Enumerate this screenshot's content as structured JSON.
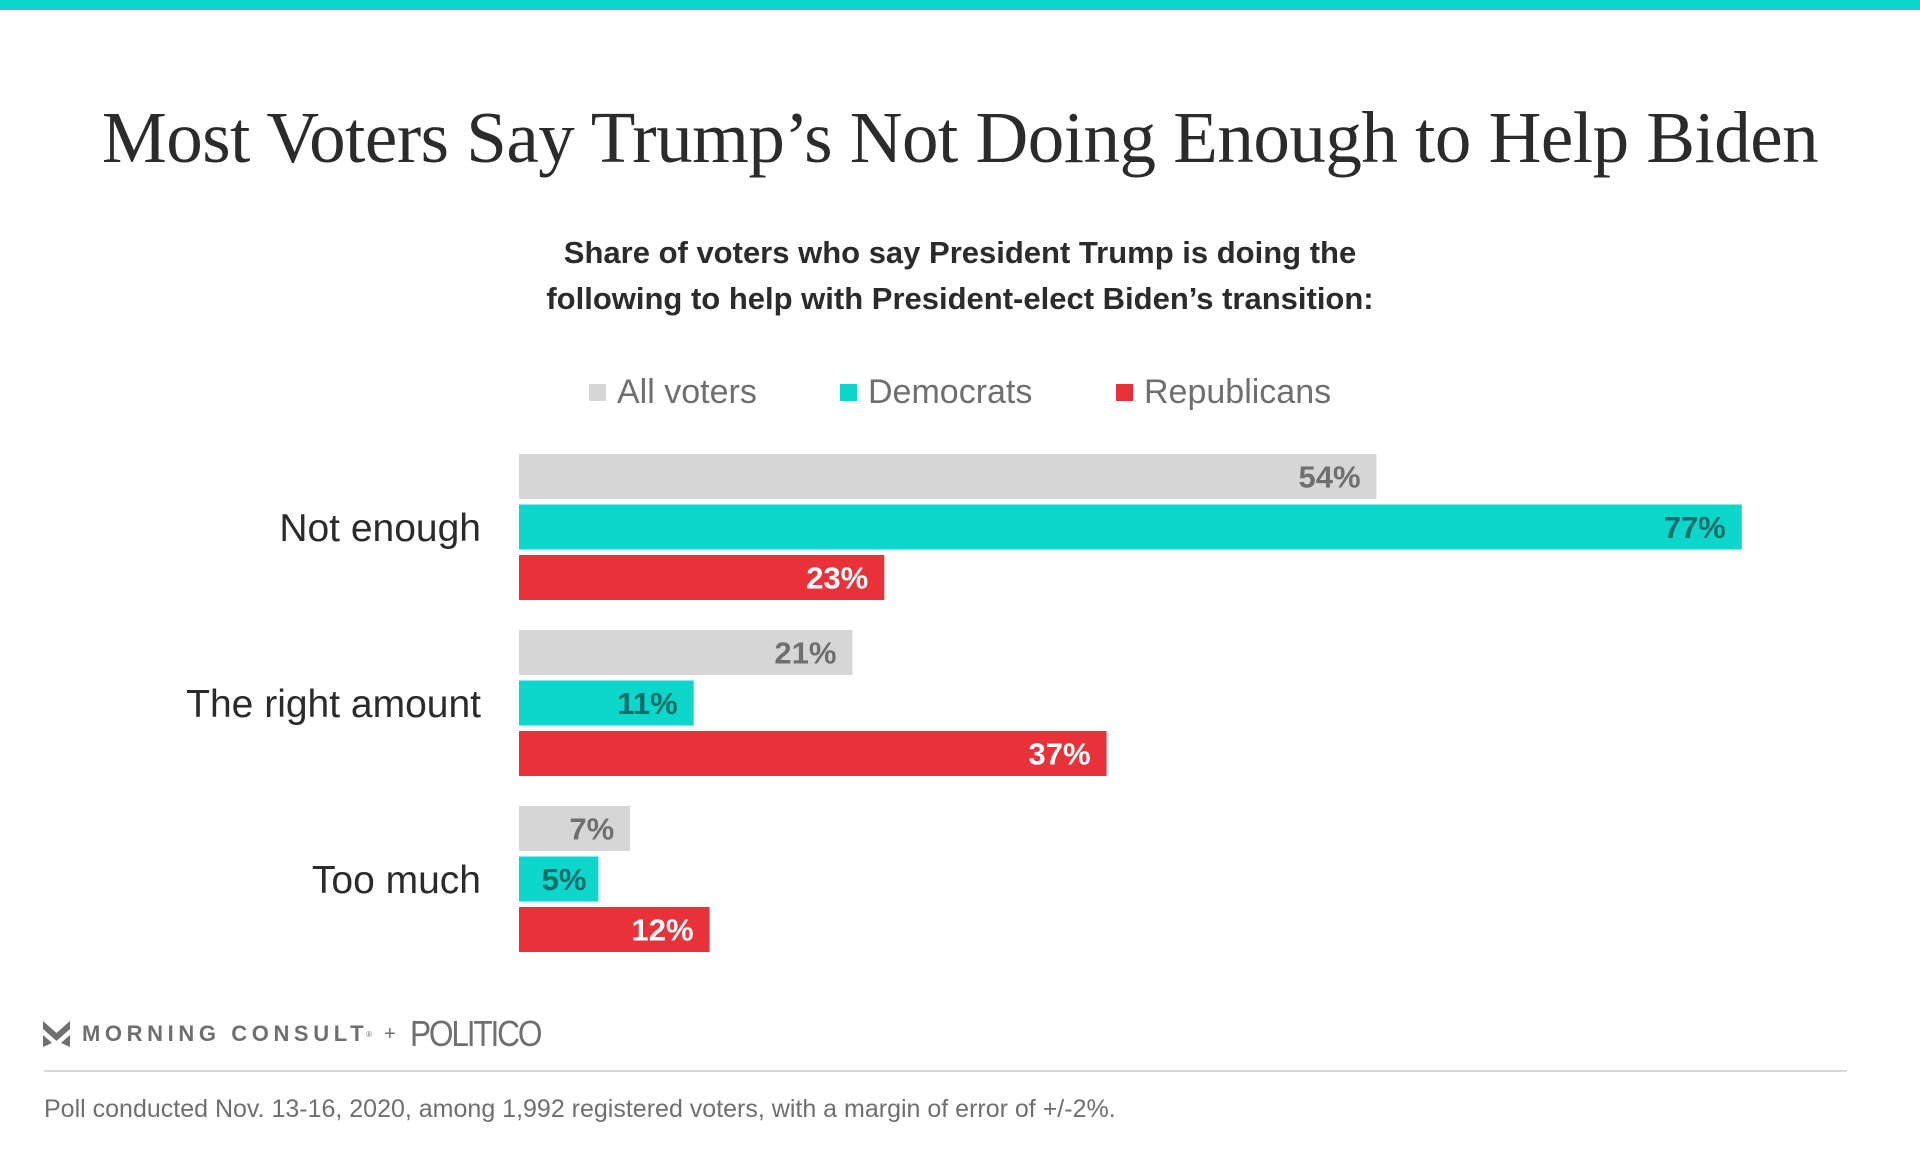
{
  "header": {
    "accent_color": "#0dd6cb",
    "title": "Most Voters Say Trump’s Not Doing Enough to Help Biden",
    "subtitle_line1": "Share of voters who say President Trump is doing the",
    "subtitle_line2": "following to help with President-elect Biden’s transition:"
  },
  "chart_data": {
    "type": "bar",
    "orientation": "horizontal",
    "title": "Most Voters Say Trump’s Not Doing Enough to Help Biden",
    "subtitle": "Share of voters who say President Trump is doing the following to help with President-elect Biden’s transition:",
    "xlabel": "",
    "ylabel": "",
    "unit": "%",
    "xlim": [
      0,
      100
    ],
    "grid": false,
    "legend_position": "top-center",
    "categories": [
      "Not enough",
      "The right amount",
      "Too much"
    ],
    "series": [
      {
        "name": "All voters",
        "color": "#d6d6d6",
        "label_color": "#6f6f6f",
        "values": [
          54,
          21,
          7
        ]
      },
      {
        "name": "Democrats",
        "color": "#0dd6cb",
        "label_color": "#0b6e68",
        "values": [
          77,
          11,
          5
        ]
      },
      {
        "name": "Republicans",
        "color": "#e83138",
        "label_color": "#ffffff",
        "values": [
          23,
          37,
          12
        ]
      }
    ]
  },
  "footer": {
    "brand1": "MORNING CONSULT",
    "brand1_mark": "®",
    "plus": "+",
    "brand2": "POLITICO",
    "note": "Poll conducted Nov. 13-16, 2020, among 1,992 registered voters, with a margin of error of +/-2%."
  }
}
